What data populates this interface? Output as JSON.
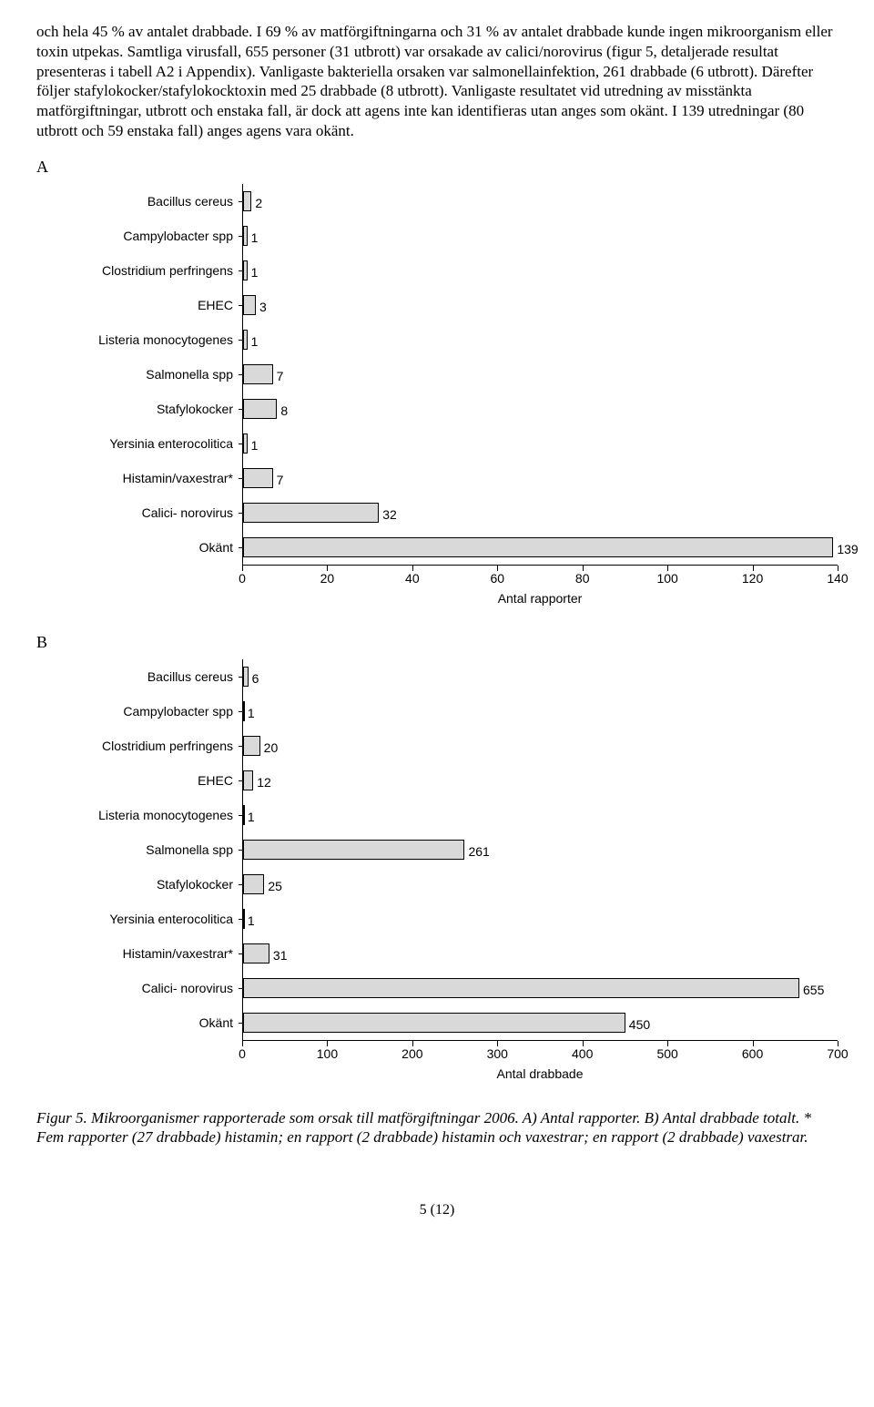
{
  "paragraph": "och hela 45 % av antalet drabbade. I 69 % av matförgiftningarna och 31 % av antalet drabbade kunde ingen mikroorganism eller toxin utpekas. Samtliga virusfall, 655 personer (31 utbrott) var orsakade av calici/norovirus (figur 5, detaljerade resultat presenteras i tabell A2 i Appendix). Vanligaste bakteriella orsaken var salmonellainfektion, 261 drabbade (6 utbrott). Därefter följer stafylokocker/stafylokocktoxin med 25 drabbade (8 utbrott). Vanligaste resultatet vid utredning av misstänkta matförgiftningar, utbrott och enstaka fall, är dock att agens inte kan identifieras utan anges som okänt. I 139 utredningar (80 utbrott och 59 enstaka fall) anges agens vara okänt.",
  "chartA": {
    "letter": "A",
    "type": "bar-horizontal",
    "categories": [
      "Bacillus cereus",
      "Campylobacter spp",
      "Clostridium perfringens",
      "EHEC",
      "Listeria monocytogenes",
      "Salmonella spp",
      "Stafylokocker",
      "Yersinia enterocolitica",
      "Histamin/vaxestrar*",
      "Calici- norovirus",
      "Okänt"
    ],
    "values": [
      2,
      1,
      1,
      3,
      1,
      7,
      8,
      1,
      7,
      32,
      139
    ],
    "xmax": 140,
    "xtick_step": 20,
    "xlabel": "Antal rapporter",
    "bar_fill": "#d9d9d9",
    "bar_border": "#000000",
    "font_family": "Arial",
    "label_fontsize": 14
  },
  "chartB": {
    "letter": "B",
    "type": "bar-horizontal",
    "categories": [
      "Bacillus cereus",
      "Campylobacter spp",
      "Clostridium perfringens",
      "EHEC",
      "Listeria monocytogenes",
      "Salmonella spp",
      "Stafylokocker",
      "Yersinia enterocolitica",
      "Histamin/vaxestrar*",
      "Calici- norovirus",
      "Okänt"
    ],
    "values": [
      6,
      1,
      20,
      12,
      1,
      261,
      25,
      1,
      31,
      655,
      450
    ],
    "xmax": 700,
    "xtick_step": 100,
    "xlabel": "Antal drabbade",
    "bar_fill": "#d9d9d9",
    "bar_border": "#000000",
    "font_family": "Arial",
    "label_fontsize": 14
  },
  "caption": "Figur 5. Mikroorganismer rapporterade som orsak till matförgiftningar 2006. A) Antal rapporter. B) Antal drabbade totalt. * Fem rapporter (27 drabbade) histamin; en rapport (2 drabbade) histamin och vaxestrar; en rapport (2 drabbade) vaxestrar.",
  "page_num": "5 (12)"
}
